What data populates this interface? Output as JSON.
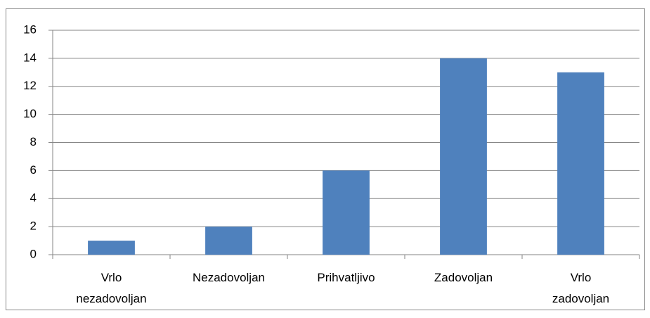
{
  "chart_data": {
    "type": "bar",
    "categories": [
      "Vrlo\nnezadovoljan",
      "Nezadovoljan",
      "Prihvatljivo",
      "Zadovoljan",
      "Vrlo\nzadovoljan"
    ],
    "values": [
      1,
      2,
      6,
      14,
      13
    ],
    "color": "#4f81bd",
    "ylim": [
      0,
      16
    ],
    "yticks": [
      0,
      2,
      4,
      6,
      8,
      10,
      12,
      14,
      16
    ],
    "grid": true
  }
}
